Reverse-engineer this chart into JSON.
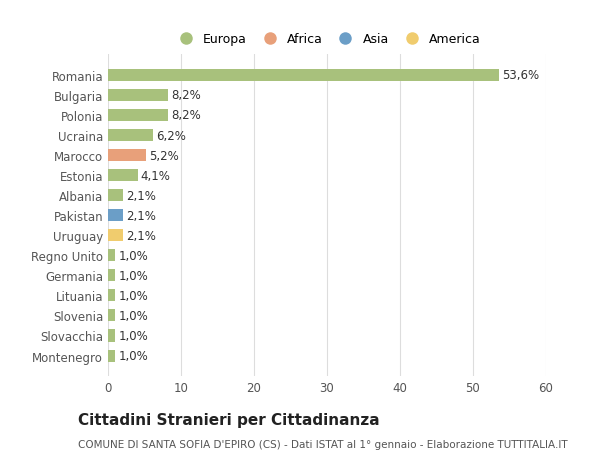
{
  "countries": [
    "Romania",
    "Bulgaria",
    "Polonia",
    "Ucraina",
    "Marocco",
    "Estonia",
    "Albania",
    "Pakistan",
    "Uruguay",
    "Regno Unito",
    "Germania",
    "Lituania",
    "Slovenia",
    "Slovacchia",
    "Montenegro"
  ],
  "values": [
    53.6,
    8.2,
    8.2,
    6.2,
    5.2,
    4.1,
    2.1,
    2.1,
    2.1,
    1.0,
    1.0,
    1.0,
    1.0,
    1.0,
    1.0
  ],
  "labels": [
    "53,6%",
    "8,2%",
    "8,2%",
    "6,2%",
    "5,2%",
    "4,1%",
    "2,1%",
    "2,1%",
    "2,1%",
    "1,0%",
    "1,0%",
    "1,0%",
    "1,0%",
    "1,0%",
    "1,0%"
  ],
  "continents": [
    "Europa",
    "Europa",
    "Europa",
    "Europa",
    "Africa",
    "Europa",
    "Europa",
    "Asia",
    "America",
    "Europa",
    "Europa",
    "Europa",
    "Europa",
    "Europa",
    "Europa"
  ],
  "continent_colors": {
    "Europa": "#a8c17c",
    "Africa": "#e8a07a",
    "Asia": "#6b9ec7",
    "America": "#f0cc6e"
  },
  "legend_order": [
    "Europa",
    "Africa",
    "Asia",
    "America"
  ],
  "xlim": [
    0,
    60
  ],
  "xticks": [
    0,
    10,
    20,
    30,
    40,
    50,
    60
  ],
  "title": "Cittadini Stranieri per Cittadinanza",
  "subtitle": "COMUNE DI SANTA SOFIA D'EPIRO (CS) - Dati ISTAT al 1° gennaio - Elaborazione TUTTITALIA.IT",
  "background_color": "#ffffff",
  "grid_color": "#dddddd",
  "bar_height": 0.6,
  "label_fontsize": 8.5,
  "tick_fontsize": 8.5,
  "title_fontsize": 11,
  "subtitle_fontsize": 7.5
}
